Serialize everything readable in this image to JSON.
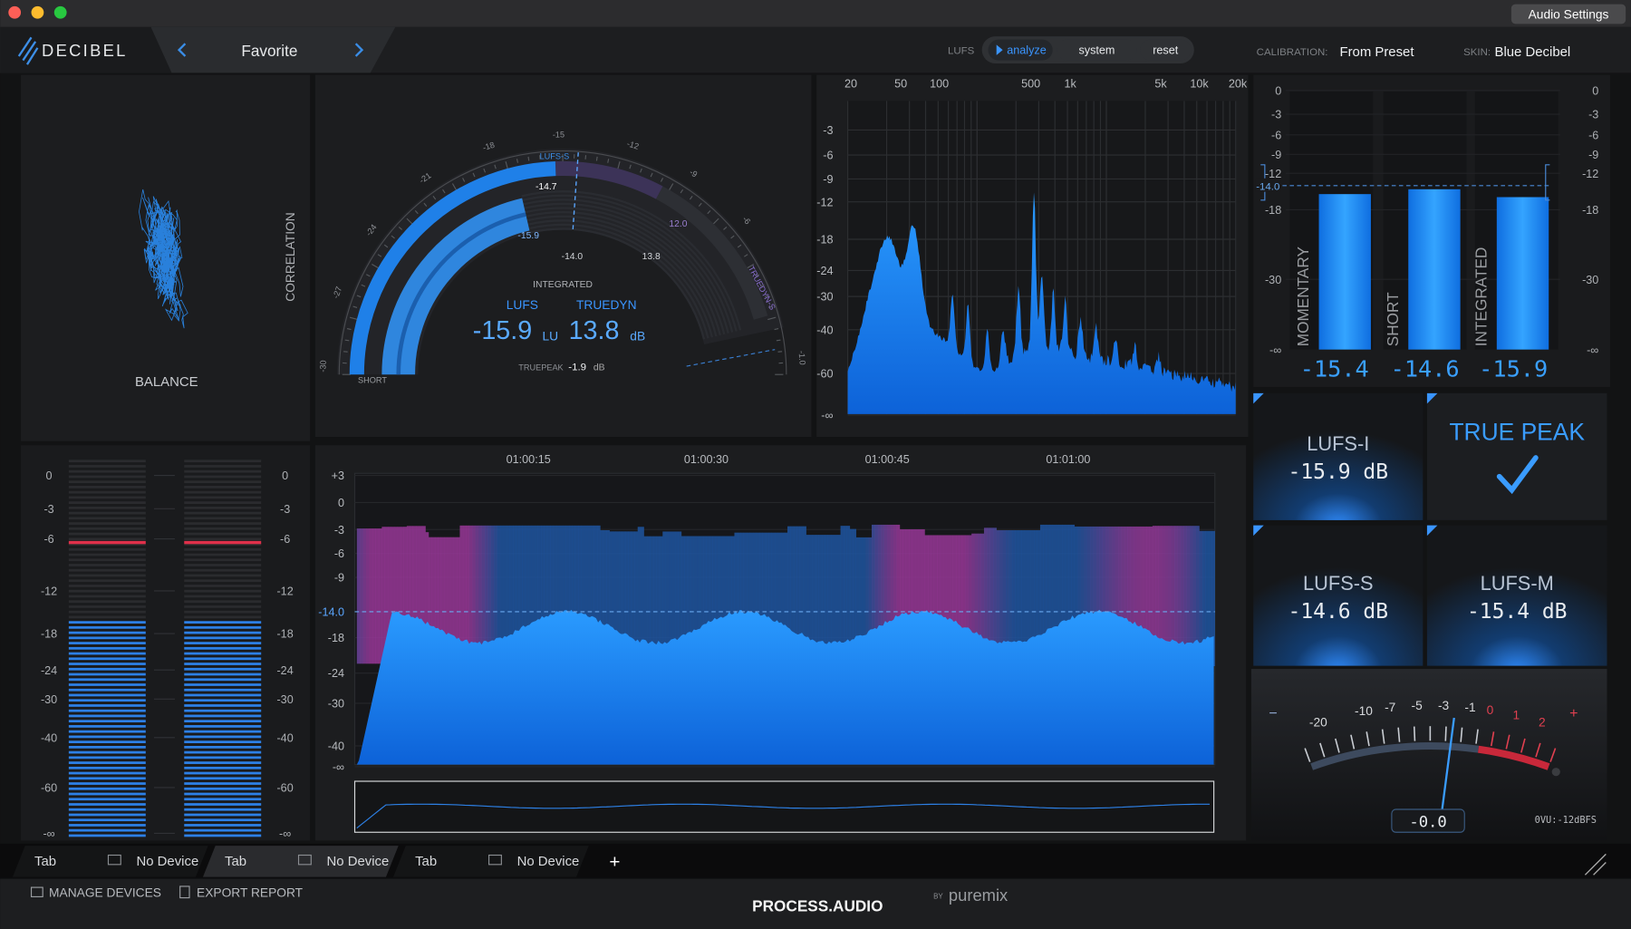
{
  "window": {
    "settings_button": "Audio Settings"
  },
  "header": {
    "logo": "DECIBEL",
    "preset": "Favorite",
    "mode_label": "LUFS",
    "modes": [
      "analyze",
      "system",
      "reset"
    ],
    "calibration_label": "CALIBRATION:",
    "calibration": "From Preset",
    "skin_label": "SKIN:",
    "skin": "Blue Decibel"
  },
  "goniometer": {
    "correlation_label": "CORRELATION",
    "balance_label": "BALANCE"
  },
  "loudness_gauge": {
    "scale": [
      "-30",
      "-27",
      "-24",
      "-21",
      "-18",
      "-15",
      "-12",
      "-9",
      "-6",
      "-1.0"
    ],
    "arc_label": "LUFS-S",
    "markers": [
      "-14.7",
      "-15.9",
      "-14.0",
      "12.0",
      "13.8"
    ],
    "truedyn_arc_label": "TRUEDYN-S",
    "short_label": "SHORT",
    "integrated_label": "INTEGRATED",
    "lufs_label": "LUFS",
    "lufs_value": "-15.9",
    "lufs_unit": "LU",
    "truedyn_label": "TRUEDYN",
    "truedyn_value": "13.8",
    "truedyn_unit": "dB",
    "truepeak_label": "TRUEPEAK",
    "truepeak_value": "-1.9",
    "truepeak_unit": "dB"
  },
  "spectrum": {
    "x_labels": [
      "20",
      "50",
      "100",
      "500",
      "1k",
      "5k",
      "10k",
      "20k"
    ],
    "y_labels": [
      "-3",
      "-6",
      "-9",
      "-12",
      "-18",
      "-24",
      "-30",
      "-40",
      "-60",
      "-∞"
    ]
  },
  "bar_meters": {
    "ticks": [
      0,
      -3,
      -6,
      -9,
      -12,
      -18,
      -30
    ],
    "floor": "-∞",
    "target": {
      "value": -14,
      "label": "-14.0"
    },
    "labels": [
      "MOMENTARY",
      "SHORT",
      "INTEGRATED"
    ],
    "values": [
      -15.4,
      -14.6,
      -15.9
    ]
  },
  "readouts": [
    {
      "label": "LUFS-I",
      "value": "-15.9 dB"
    },
    {
      "label": "TRUE PEAK"
    },
    {
      "label": "LUFS-S",
      "value": "-14.6 dB"
    },
    {
      "label": "LUFS-M",
      "value": "-15.4 dB"
    }
  ],
  "peak_meters": {
    "scale": [
      "0",
      "-3",
      "-6",
      "-12",
      "-18",
      "-24",
      "-30",
      "-40",
      "-60",
      "-∞"
    ]
  },
  "history": {
    "time_labels": [
      "01:00:15",
      "01:00:30",
      "01:00:45",
      "01:01:00"
    ],
    "scale": [
      "+3",
      "0",
      "-3",
      "-6",
      "-9",
      "-14.0",
      "-18",
      "-24",
      "-30",
      "-40",
      "-∞"
    ]
  },
  "vu_meter": {
    "minus": "−",
    "scale": [
      "-20",
      "-10",
      "-7",
      "-5",
      "-3",
      "-1",
      "0",
      "1",
      "2"
    ],
    "plus": "+",
    "readout": "-0.0",
    "reference": "0VU:-12dBFS"
  },
  "tabs": [
    {
      "name": "Tab",
      "device": "No Device"
    },
    {
      "name": "Tab",
      "device": "No Device"
    },
    {
      "name": "Tab",
      "device": "No Device"
    }
  ],
  "add_tab": "+",
  "footer": {
    "manage_devices": "MANAGE DEVICES",
    "export_report": "EXPORT REPORT",
    "brand": "PROCESS.AUDIO",
    "by": "BY",
    "partner": "puremix"
  }
}
